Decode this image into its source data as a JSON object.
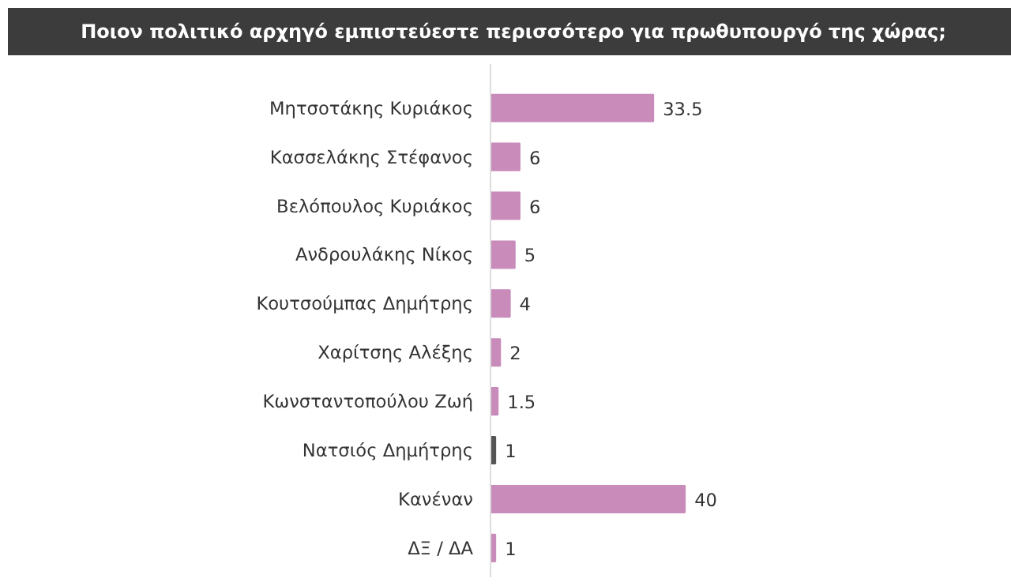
{
  "chart_data": {
    "type": "bar",
    "orientation": "horizontal",
    "title": "Ποιον πολιτικό αρχηγό εμπιστεύεστε περισσότερο για πρωθυπουργό της χώρας;",
    "categories": [
      "Μητσοτάκης Κυριάκος",
      "Κασσελάκης Στέφανος",
      "Βελόπουλος Κυριάκος",
      "Ανδρουλάκης Νίκος",
      "Κουτσούμπας Δημήτρης",
      "Χαρίτσης Αλέξης",
      "Κωνσταντοπούλου Ζωή",
      "Νατσιός Δημήτρης",
      "Κανέναν",
      "ΔΞ / ΔΑ"
    ],
    "values": [
      33.5,
      6,
      6,
      5,
      4,
      2,
      1.5,
      1,
      40,
      1
    ],
    "colors": [
      "#c88bba",
      "#c88bba",
      "#c88bba",
      "#c88bba",
      "#c88bba",
      "#c88bba",
      "#c88bba",
      "#555555",
      "#c88bba",
      "#c88bba"
    ],
    "data_labels": true,
    "grid": false
  }
}
